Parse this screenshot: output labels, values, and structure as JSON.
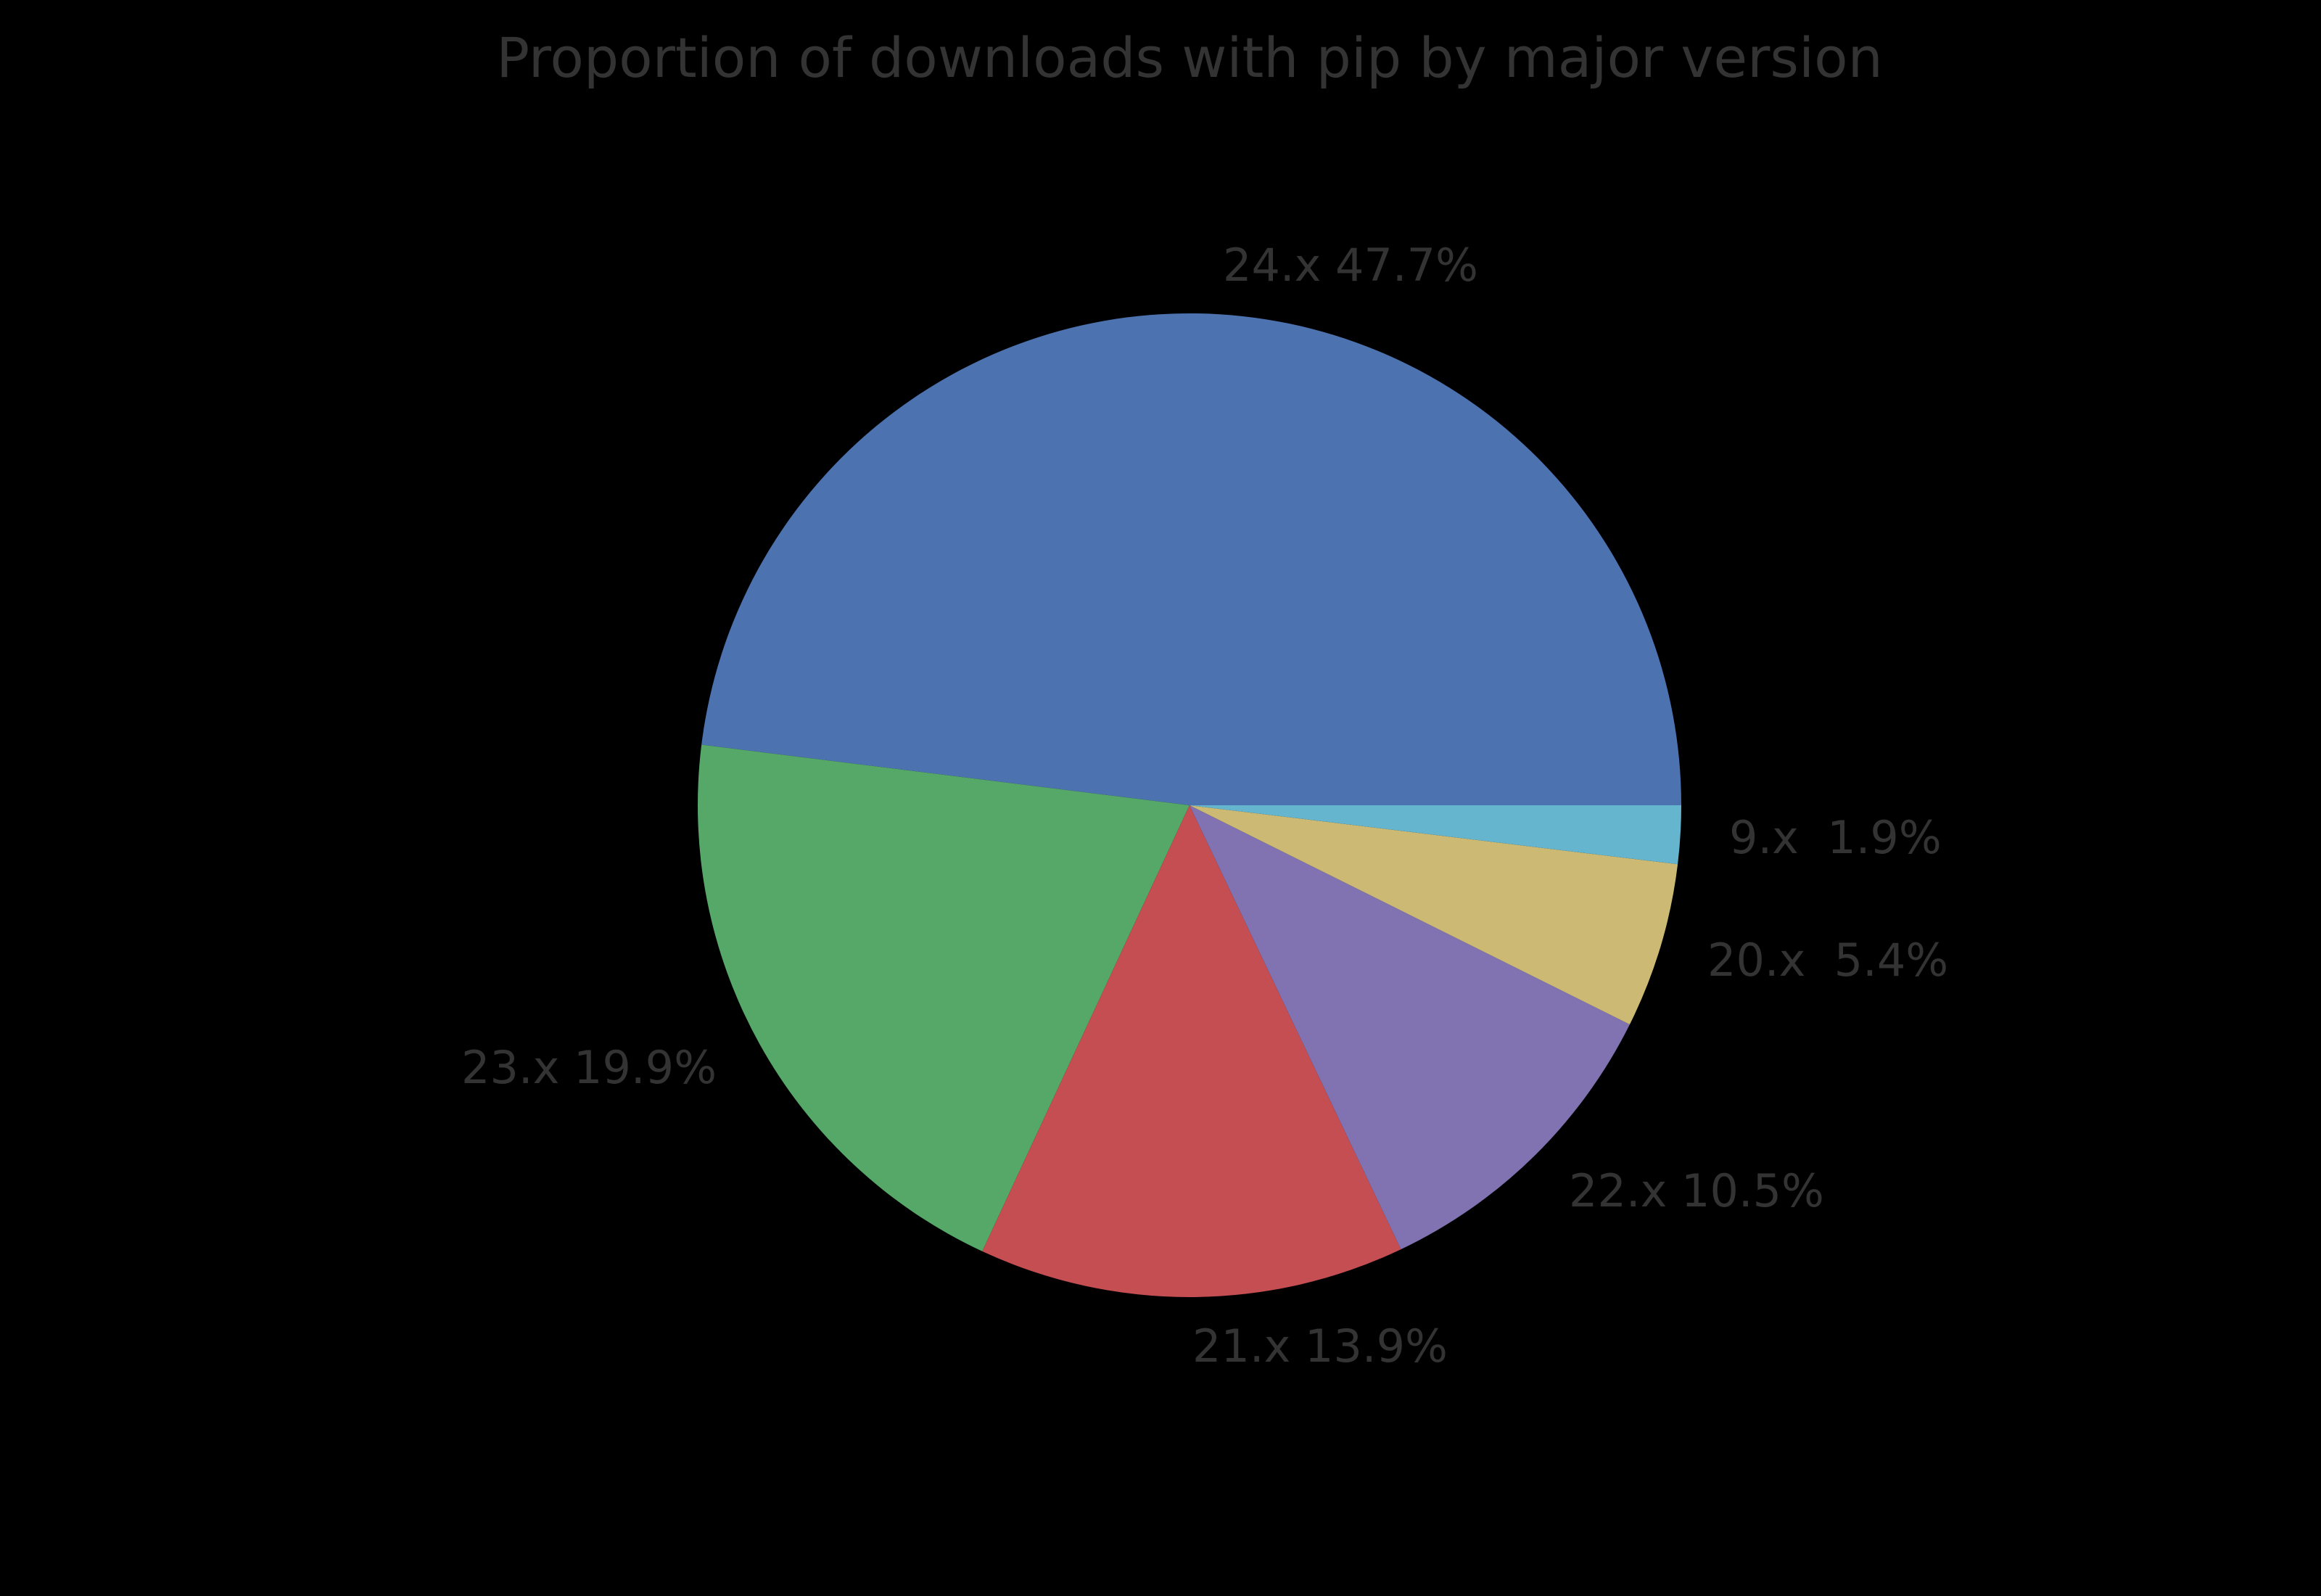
{
  "page": {
    "background_color": "#000000"
  },
  "chart_data": {
    "type": "pie",
    "title": "Proportion of downloads with pip by major version",
    "categories": [
      "24.x",
      "23.x",
      "21.x",
      "22.x",
      "20.x",
      "9.x"
    ],
    "values": [
      47.7,
      19.9,
      13.9,
      10.5,
      5.4,
      1.9
    ],
    "unit": "%",
    "slice_labels": [
      "24.x 47.7%",
      "23.x 19.9%",
      "21.x 13.9%",
      "22.x 10.5%",
      "20.x  5.4%",
      "9.x  1.9%"
    ],
    "colors": [
      "#4C72B0",
      "#55A868",
      "#C44E52",
      "#8172B2",
      "#CCB974",
      "#64B5CD"
    ],
    "start_angle_deg": 0,
    "counterclockwise": true,
    "label_distance": 1.1,
    "legend": "none",
    "grid": false,
    "text_color": "#333333",
    "background_color": "#000000"
  }
}
